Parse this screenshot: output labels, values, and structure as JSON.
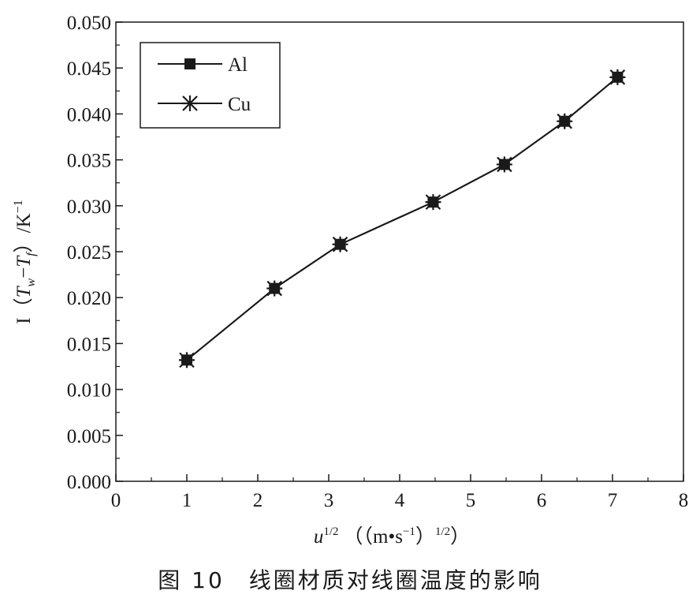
{
  "caption": "图 10　线圈材质对线圈温度的影响",
  "chart_data": {
    "type": "line",
    "title": "",
    "xlabel": {
      "main": "u",
      "main_sup": "1/2",
      "unit_open": "（（m•s",
      "unit_sup": "−1",
      "unit_mid": "）",
      "unit_sup2": "1/2",
      "unit_close": "）"
    },
    "ylabel": {
      "prefix": "I（",
      "t1": "T",
      "sub1": "w",
      "minus": "−",
      "t2": "T",
      "sub2": "f",
      "suffix": "）/K",
      "sup": "−1"
    },
    "xlim": [
      0,
      8
    ],
    "ylim": [
      0,
      0.05
    ],
    "xticks": [
      "0",
      "1",
      "2",
      "3",
      "4",
      "5",
      "6",
      "7",
      "8"
    ],
    "yticks": [
      "0.000",
      "0.005",
      "0.010",
      "0.015",
      "0.020",
      "0.025",
      "0.030",
      "0.035",
      "0.040",
      "0.045",
      "0.050"
    ],
    "grid": false,
    "legend": {
      "position": "top-left"
    },
    "series": [
      {
        "name": "Al",
        "marker": "filled-square",
        "color": "#1a1a1a",
        "x": [
          1.0,
          2.236,
          3.162,
          4.472,
          5.477,
          6.325,
          7.071
        ],
        "y": [
          0.0132,
          0.021,
          0.0258,
          0.0304,
          0.0345,
          0.0392,
          0.044
        ]
      },
      {
        "name": "Cu",
        "marker": "asterisk",
        "color": "#1a1a1a",
        "x": [
          1.0,
          2.236,
          3.162,
          4.472,
          5.477,
          6.325,
          7.071
        ],
        "y": [
          0.0132,
          0.021,
          0.0258,
          0.0304,
          0.0345,
          0.0392,
          0.044
        ]
      }
    ]
  }
}
